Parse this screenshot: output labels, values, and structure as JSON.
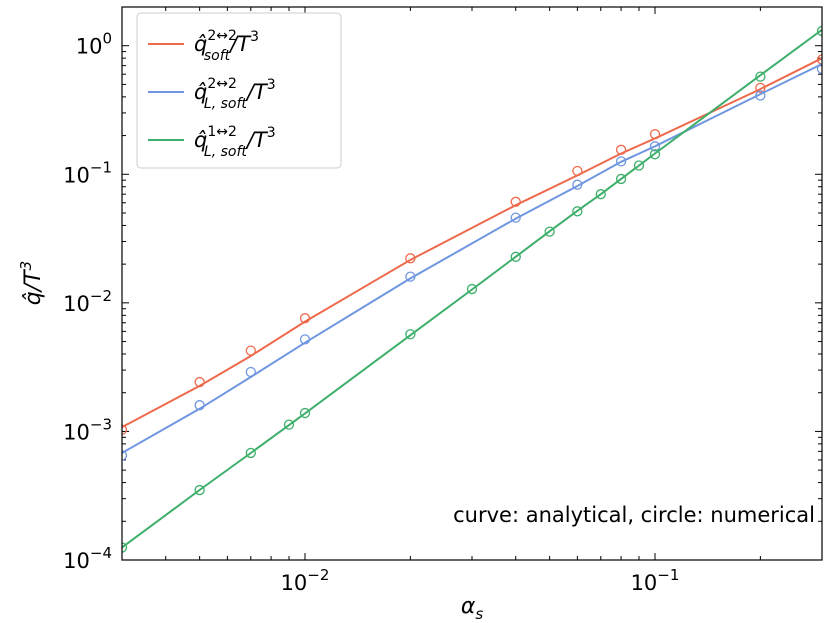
{
  "chart_data": {
    "type": "line",
    "xlabel": "α_s",
    "ylabel": "q̂/T^3",
    "xscale": "log",
    "yscale": "log",
    "xlim": [
      0.003,
      0.3
    ],
    "ylim": [
      0.0001,
      2.0
    ],
    "x_ticks": [
      {
        "value": 0.01,
        "base": "10",
        "exp": "−2"
      },
      {
        "value": 0.1,
        "base": "10",
        "exp": "−1"
      }
    ],
    "y_ticks": [
      {
        "value": 0.0001,
        "base": "10",
        "exp": "−4"
      },
      {
        "value": 0.001,
        "base": "10",
        "exp": "−3"
      },
      {
        "value": 0.01,
        "base": "10",
        "exp": "−2"
      },
      {
        "value": 0.1,
        "base": "10",
        "exp": "−1"
      },
      {
        "value": 1,
        "base": "10",
        "exp": "0"
      }
    ],
    "annotation": "curve: analytical, circle: numerical",
    "legend_position": "upper-left",
    "series": [
      {
        "name": "q̂^{2↔2}_{soft}/T^3",
        "color": "#ee6a4d",
        "curve": {
          "x": [
            0.003,
            0.005,
            0.007,
            0.01,
            0.02,
            0.04,
            0.06,
            0.08,
            0.1,
            0.2,
            0.3
          ],
          "y": [
            0.00108,
            0.00226,
            0.00386,
            0.00715,
            0.0216,
            0.0575,
            0.098,
            0.145,
            0.19,
            0.46,
            0.8
          ]
        },
        "points": {
          "x": [
            0.003,
            0.005,
            0.007,
            0.01,
            0.02,
            0.04,
            0.06,
            0.08,
            0.1,
            0.2,
            0.3
          ],
          "y": [
            0.00103,
            0.00242,
            0.00425,
            0.0076,
            0.0222,
            0.0611,
            0.106,
            0.155,
            0.205,
            0.47,
            0.78
          ]
        }
      },
      {
        "name": "q̂^{2↔2}_{L,soft}/T^3",
        "color": "#6f96e0",
        "curve": {
          "x": [
            0.003,
            0.005,
            0.007,
            0.01,
            0.02,
            0.04,
            0.06,
            0.08,
            0.1,
            0.2,
            0.3
          ],
          "y": [
            0.00068,
            0.0015,
            0.00265,
            0.0049,
            0.0155,
            0.0452,
            0.081,
            0.125,
            0.165,
            0.42,
            0.72
          ]
        },
        "points": {
          "x": [
            0.003,
            0.005,
            0.007,
            0.01,
            0.02,
            0.04,
            0.06,
            0.08,
            0.1,
            0.2,
            0.3
          ],
          "y": [
            0.00065,
            0.0016,
            0.0029,
            0.0052,
            0.016,
            0.046,
            0.083,
            0.126,
            0.165,
            0.41,
            0.66
          ]
        }
      },
      {
        "name": "q̂^{1↔2}_{L,soft}/T^3",
        "color": "#3daf6a",
        "curve": {
          "x": [
            0.003,
            0.005,
            0.007,
            0.01,
            0.02,
            0.03,
            0.04,
            0.05,
            0.06,
            0.07,
            0.08,
            0.09,
            0.1,
            0.2,
            0.3
          ],
          "y": [
            0.000125,
            0.00035,
            0.00068,
            0.00138,
            0.0056,
            0.0127,
            0.0228,
            0.036,
            0.052,
            0.07,
            0.092,
            0.117,
            0.145,
            0.59,
            1.33
          ]
        },
        "points": {
          "x": [
            0.003,
            0.005,
            0.007,
            0.009,
            0.01,
            0.02,
            0.03,
            0.04,
            0.05,
            0.06,
            0.07,
            0.08,
            0.09,
            0.1,
            0.2,
            0.3
          ],
          "y": [
            0.000125,
            0.00035,
            0.00068,
            0.00113,
            0.00139,
            0.0057,
            0.0128,
            0.0228,
            0.0358,
            0.0515,
            0.07,
            0.092,
            0.117,
            0.143,
            0.575,
            1.3
          ]
        }
      }
    ]
  },
  "legend": {
    "items": [
      {
        "base": "q̂",
        "sup": "2↔2",
        "sub": "soft",
        "tail": "/T",
        "tail_sup": "3"
      },
      {
        "base": "q̂",
        "sup": "2↔2",
        "sub": "L, soft",
        "tail": "/T",
        "tail_sup": "3"
      },
      {
        "base": "q̂",
        "sup": "1↔2",
        "sub": "L, soft",
        "tail": "/T",
        "tail_sup": "3"
      }
    ]
  },
  "axes_text": {
    "xlabel_base": "α",
    "xlabel_sub": "s",
    "ylabel_base": "q̂/T",
    "ylabel_sup": "3"
  }
}
